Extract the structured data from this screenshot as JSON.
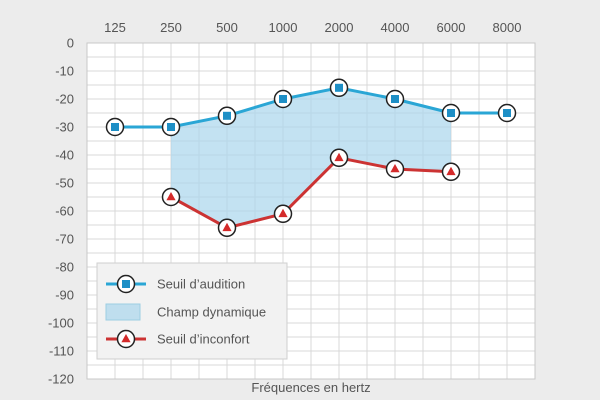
{
  "chart_data": {
    "type": "line",
    "x_categories": [
      "125",
      "250",
      "500",
      "1000",
      "2000",
      "4000",
      "6000",
      "8000"
    ],
    "y_ticks": [
      0,
      -10,
      -20,
      -30,
      -40,
      -50,
      -60,
      -70,
      -80,
      -90,
      -100,
      -110,
      -120
    ],
    "ylim": [
      -120,
      0
    ],
    "xlabel": "Fréquences en hertz",
    "grid": true,
    "x_axis_position": "top",
    "legend_position": "bottom-left",
    "series": [
      {
        "name": "Seuil d’audition",
        "marker": "square",
        "color": "#2aa6d5",
        "marker_color": "#1e8fc6",
        "x": [
          "125",
          "250",
          "500",
          "1000",
          "2000",
          "4000",
          "6000",
          "8000"
        ],
        "values": [
          -30,
          -30,
          -26,
          -20,
          -16,
          -20,
          -25,
          -25
        ]
      },
      {
        "name": "Seuil d’inconfort",
        "marker": "triangle",
        "color": "#cc3333",
        "marker_color": "#d42a2a",
        "x": [
          "250",
          "500",
          "1000",
          "2000",
          "4000",
          "6000"
        ],
        "values": [
          -55,
          -66,
          -61,
          -41,
          -45,
          -46
        ]
      }
    ],
    "area": {
      "name": "Champ dynamique",
      "color": "#a9d6ec",
      "between": [
        "Seuil d’audition",
        "Seuil d’inconfort"
      ],
      "x": [
        "250",
        "500",
        "1000",
        "2000",
        "4000",
        "6000"
      ]
    }
  }
}
